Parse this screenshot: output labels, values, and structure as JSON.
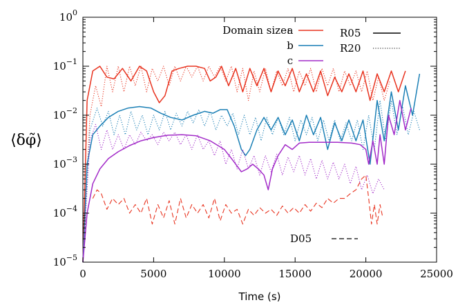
{
  "chart_data": {
    "type": "line",
    "xlabel": "Time (s)",
    "ylabel": "⟨δφ̃⟩",
    "xlim": [
      0,
      25000
    ],
    "ylim": [
      1e-05,
      1
    ],
    "yscale": "log",
    "xticks": [
      0,
      5000,
      10000,
      15000,
      20000,
      25000
    ],
    "ytick_labels": [
      "10^0",
      "10^-1",
      "10^-2",
      "10^-3",
      "10^-4",
      "10^-5"
    ],
    "legend": {
      "position": "top-right",
      "domain_title": "Domain size:",
      "domain_entries": [
        {
          "letter": "a",
          "color": "#e8321e"
        },
        {
          "letter": "b",
          "color": "#1a7fb5"
        },
        {
          "letter": "c",
          "color": "#a22ac8"
        }
      ],
      "run_entries": [
        {
          "label": "R05",
          "style": "solid"
        },
        {
          "label": "R20",
          "style": "dotted"
        }
      ],
      "d05": {
        "label": "D05",
        "style": "dashed"
      }
    },
    "series": [
      {
        "domain": "a",
        "run": "R05",
        "style": "solid",
        "color": "#e8321e",
        "x": [
          0,
          300,
          700,
          1200,
          1700,
          2200,
          2800,
          3400,
          4000,
          4500,
          5000,
          5400,
          5800,
          6300,
          6800,
          7400,
          8000,
          8600,
          9000,
          9400,
          9800,
          10300,
          10800,
          11300,
          11800,
          12300,
          12800,
          13300,
          13800,
          14300,
          14800,
          15300,
          15800,
          16300,
          16800,
          17300,
          17800,
          18300,
          18800,
          19300,
          19800,
          20300,
          20800,
          21300,
          21800,
          22300,
          22800
        ],
        "y": [
          1e-05,
          0.02,
          0.08,
          0.1,
          0.06,
          0.055,
          0.09,
          0.05,
          0.1,
          0.08,
          0.03,
          0.018,
          0.025,
          0.08,
          0.09,
          0.1,
          0.1,
          0.09,
          0.05,
          0.06,
          0.1,
          0.04,
          0.09,
          0.03,
          0.09,
          0.04,
          0.09,
          0.03,
          0.08,
          0.04,
          0.09,
          0.03,
          0.07,
          0.03,
          0.08,
          0.025,
          0.06,
          0.03,
          0.07,
          0.03,
          0.08,
          0.02,
          0.07,
          0.03,
          0.08,
          0.03,
          0.08
        ]
      },
      {
        "domain": "a",
        "run": "R20",
        "style": "dotted",
        "color": "#e8321e",
        "x": [
          0,
          500,
          900,
          1300,
          1700,
          2100,
          2500,
          2900,
          3300,
          3700,
          4100,
          4500,
          4900,
          5300,
          5700,
          6100,
          6500,
          6900,
          7300,
          7700,
          8100,
          8500,
          8900,
          9300,
          9700,
          10100,
          10500,
          10900,
          11300,
          11700,
          12100,
          12500,
          12900,
          13300,
          13700,
          14100,
          14500,
          14900,
          15300,
          15700,
          16100,
          16500,
          16900,
          17300,
          17700,
          18100,
          18500,
          18900,
          19300,
          19700,
          20100,
          20500,
          20900,
          21300,
          21700
        ],
        "y": [
          1e-05,
          0.01,
          0.04,
          0.015,
          0.1,
          0.03,
          0.1,
          0.03,
          0.1,
          0.04,
          0.1,
          0.03,
          0.09,
          0.05,
          0.1,
          0.04,
          0.1,
          0.05,
          0.1,
          0.06,
          0.1,
          0.05,
          0.1,
          0.06,
          0.1,
          0.05,
          0.1,
          0.03,
          0.09,
          0.02,
          0.08,
          0.03,
          0.09,
          0.03,
          0.08,
          0.04,
          0.09,
          0.03,
          0.08,
          0.04,
          0.09,
          0.03,
          0.09,
          0.04,
          0.09,
          0.03,
          0.08,
          0.04,
          0.08,
          0.03,
          0.08,
          0.02,
          0.06,
          0.02,
          0.05
        ]
      },
      {
        "domain": "b",
        "run": "R05",
        "style": "solid",
        "color": "#1a7fb5",
        "x": [
          0,
          300,
          700,
          1200,
          1800,
          2500,
          3200,
          4000,
          4800,
          5500,
          6200,
          7000,
          7800,
          8600,
          9200,
          9700,
          10200,
          10700,
          11200,
          11500,
          11800,
          12300,
          12800,
          13300,
          13800,
          14300,
          14800,
          15300,
          15800,
          16300,
          16800,
          17300,
          17800,
          18300,
          18800,
          19300,
          19800,
          20300,
          20800,
          21300,
          21800,
          22300,
          22800,
          23300,
          23800
        ],
        "y": [
          1e-05,
          0.001,
          0.004,
          0.006,
          0.009,
          0.012,
          0.014,
          0.015,
          0.014,
          0.011,
          0.009,
          0.008,
          0.01,
          0.012,
          0.011,
          0.013,
          0.013,
          0.006,
          0.002,
          0.0015,
          0.002,
          0.005,
          0.009,
          0.005,
          0.009,
          0.004,
          0.008,
          0.003,
          0.01,
          0.004,
          0.009,
          0.002,
          0.007,
          0.003,
          0.008,
          0.003,
          0.008,
          0.001,
          0.02,
          0.003,
          0.03,
          0.005,
          0.04,
          0.01,
          0.07
        ]
      },
      {
        "domain": "b",
        "run": "R20",
        "style": "dotted",
        "color": "#1a7fb5",
        "x": [
          0,
          500,
          1000,
          1400,
          1800,
          2200,
          2600,
          3000,
          3400,
          3800,
          4200,
          4600,
          5000,
          5400,
          5800,
          6200,
          6600,
          7000,
          7400,
          7800,
          8200,
          8600,
          9000,
          9400,
          9800,
          10200,
          10600,
          11000,
          11400,
          11800,
          12200,
          12600,
          13000,
          13400,
          13800,
          14200,
          14600,
          15000,
          15400,
          15800,
          16200,
          16600,
          17000,
          17400,
          17800,
          18200,
          18600,
          19000,
          19400,
          19800,
          20200,
          20600,
          21000,
          21400,
          21800,
          22200,
          22600,
          23000,
          23400,
          23800
        ],
        "y": [
          1e-05,
          0.005,
          0.014,
          0.006,
          0.012,
          0.004,
          0.01,
          0.004,
          0.012,
          0.005,
          0.01,
          0.004,
          0.01,
          0.005,
          0.012,
          0.005,
          0.011,
          0.006,
          0.012,
          0.007,
          0.013,
          0.006,
          0.012,
          0.005,
          0.01,
          0.006,
          0.011,
          0.004,
          0.01,
          0.004,
          0.009,
          0.003,
          0.009,
          0.004,
          0.009,
          0.004,
          0.009,
          0.003,
          0.008,
          0.004,
          0.009,
          0.003,
          0.008,
          0.003,
          0.008,
          0.003,
          0.007,
          0.003,
          0.008,
          0.002,
          0.01,
          0.002,
          0.02,
          0.003,
          0.02,
          0.004,
          0.015,
          0.004,
          0.012,
          0.005
        ]
      },
      {
        "domain": "c",
        "run": "R05",
        "style": "solid",
        "color": "#a22ac8",
        "x": [
          0,
          300,
          700,
          1200,
          1800,
          2500,
          3300,
          4100,
          5000,
          6000,
          7000,
          8000,
          9000,
          10000,
          10600,
          11200,
          11600,
          12000,
          12400,
          12800,
          13100,
          13400,
          13800,
          14300,
          14800,
          15300,
          16000,
          17000,
          18000,
          19000,
          19600,
          20000,
          20200,
          20500,
          20800,
          21000,
          21300,
          21600,
          22000,
          22400,
          22800,
          23200
        ],
        "y": [
          1e-05,
          0.0001,
          0.0004,
          0.0008,
          0.0013,
          0.0018,
          0.0024,
          0.003,
          0.0035,
          0.0039,
          0.004,
          0.0038,
          0.003,
          0.002,
          0.0012,
          0.0007,
          0.0008,
          0.001,
          0.0008,
          0.0006,
          0.0003,
          0.0008,
          0.0015,
          0.0025,
          0.002,
          0.0027,
          0.0028,
          0.0028,
          0.0028,
          0.0027,
          0.0025,
          0.002,
          0.001,
          0.003,
          0.001,
          0.004,
          0.001,
          0.01,
          0.004,
          0.02,
          0.005,
          0.014
        ]
      },
      {
        "domain": "c",
        "run": "R20",
        "style": "dotted",
        "color": "#a22ac8",
        "x": [
          0,
          500,
          900,
          1300,
          1700,
          2100,
          2500,
          2900,
          3300,
          3700,
          4100,
          4500,
          4900,
          5300,
          5700,
          6100,
          6500,
          6900,
          7300,
          7700,
          8100,
          8500,
          8900,
          9300,
          9700,
          10100,
          10500,
          10900,
          11300,
          11700,
          12100,
          12500,
          12900,
          13300,
          13700,
          14100,
          14500,
          14900,
          15300,
          15700,
          16100,
          16500,
          16900,
          17300,
          17700,
          18100,
          18500,
          18900,
          19300,
          19700,
          20100,
          20500,
          20900,
          21300
        ],
        "y": [
          1e-05,
          0.003,
          0.0065,
          0.002,
          0.005,
          0.002,
          0.004,
          0.002,
          0.004,
          0.0025,
          0.0045,
          0.003,
          0.004,
          0.0025,
          0.0045,
          0.003,
          0.0045,
          0.0025,
          0.004,
          0.002,
          0.004,
          0.002,
          0.003,
          0.0015,
          0.003,
          0.001,
          0.002,
          0.0008,
          0.002,
          0.0008,
          0.0015,
          0.0006,
          0.0015,
          0.0007,
          0.0016,
          0.0006,
          0.0014,
          0.0007,
          0.0015,
          0.0006,
          0.0013,
          0.0005,
          0.0012,
          0.0005,
          0.0011,
          0.0005,
          0.001,
          0.0004,
          0.0009,
          0.0003,
          0.0006,
          0.00025,
          0.0005,
          0.0003
        ]
      },
      {
        "domain": "",
        "run": "D05",
        "style": "dashed",
        "color": "#e8321e",
        "x": [
          700,
          1000,
          1300,
          1700,
          2100,
          2500,
          2900,
          3300,
          3700,
          4100,
          4500,
          4900,
          5300,
          5700,
          6100,
          6500,
          6900,
          7300,
          7700,
          8100,
          8500,
          8900,
          9300,
          9700,
          10100,
          10500,
          10900,
          11300,
          11700,
          12100,
          12500,
          12900,
          13300,
          13700,
          14100,
          14500,
          14900,
          15300,
          15700,
          16100,
          16500,
          16900,
          17300,
          17700,
          18100,
          18500,
          18900,
          19300,
          19700,
          20000,
          20200,
          20400,
          20600,
          20800,
          21000,
          21200
        ],
        "y": [
          0.0002,
          0.0003,
          0.00025,
          0.00012,
          0.0002,
          0.00015,
          0.0002,
          0.0001,
          0.00015,
          0.0001,
          0.0002,
          6e-05,
          0.00015,
          8e-05,
          0.00018,
          6e-05,
          0.0002,
          8e-05,
          0.00015,
          0.0001,
          0.00015,
          8e-05,
          0.0002,
          7e-05,
          0.00015,
          0.0001,
          0.00012,
          6e-05,
          0.00012,
          9e-05,
          0.00013,
          0.0001,
          0.00012,
          9e-05,
          0.00014,
          0.0001,
          0.00013,
          0.0001,
          0.00015,
          0.00011,
          0.00016,
          0.00013,
          0.0002,
          0.00016,
          0.0002,
          0.0002,
          0.00025,
          0.0003,
          0.0005,
          0.0006,
          0.0002,
          6e-05,
          0.00015,
          6e-05,
          0.00015,
          8e-05
        ]
      }
    ]
  }
}
